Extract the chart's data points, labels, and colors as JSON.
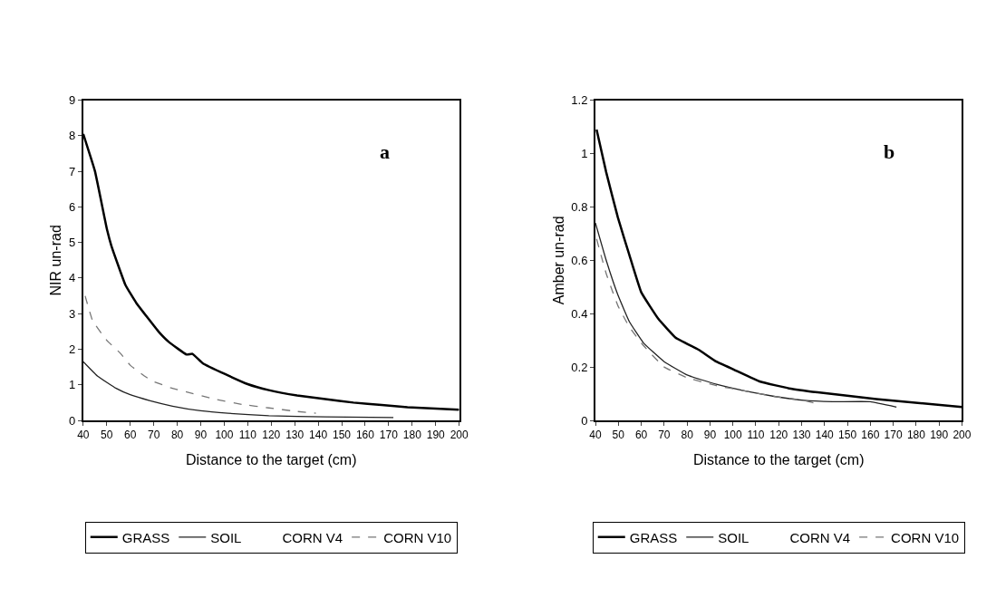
{
  "chart_data": [
    {
      "type": "line",
      "xlabel": "Distance to the target (cm)",
      "ylabel": "NIR un-rad",
      "annotations": [
        "a"
      ],
      "xlim": [
        40,
        200
      ],
      "xticks": [
        40,
        50,
        60,
        70,
        80,
        90,
        100,
        110,
        120,
        130,
        140,
        150,
        160,
        170,
        180,
        190,
        200
      ],
      "ylim": [
        0,
        9
      ],
      "yticks": [
        0,
        1,
        2,
        3,
        4,
        5,
        6,
        7,
        8,
        9
      ],
      "legend": "bottom",
      "marker": "none",
      "series": [
        {
          "name": "GRASS",
          "color": "#000000",
          "line_style": "solid",
          "x": [
            40,
            45,
            50,
            52,
            58,
            62.6,
            72,
            76.5,
            84,
            86.5,
            91,
            100.4,
            110,
            119,
            131,
            143,
            155,
            167,
            178,
            200
          ],
          "values": [
            8.05,
            7.0,
            5.4,
            4.9,
            3.8,
            3.3,
            2.5,
            2.2,
            1.85,
            1.87,
            1.6,
            1.3,
            1.02,
            0.85,
            0.7,
            0.6,
            0.5,
            0.43,
            0.37,
            0.3
          ]
        },
        {
          "name": "SOIL",
          "color": "#222222",
          "line_style": "solid",
          "x": [
            40,
            46,
            54,
            60,
            68.5,
            78,
            90,
            101.6,
            119,
            143,
            172
          ],
          "values": [
            1.65,
            1.25,
            0.9,
            0.72,
            0.55,
            0.4,
            0.27,
            0.2,
            0.13,
            0.1,
            0.08
          ]
        },
        {
          "name": "CORN V4"
        },
        {
          "name": "CORN V10",
          "color": "#777777",
          "line_style": "dashed",
          "x": [
            40.8,
            44,
            50,
            55.6,
            60,
            66,
            69.6,
            78,
            84,
            95.7,
            107.5,
            119,
            131,
            139
          ],
          "values": [
            3.5,
            2.8,
            2.25,
            1.9,
            1.55,
            1.25,
            1.1,
            0.9,
            0.8,
            0.6,
            0.45,
            0.35,
            0.25,
            0.2
          ]
        }
      ]
    },
    {
      "type": "line",
      "xlabel": "Distance to the target (cm)",
      "ylabel": "Amber un-rad",
      "annotations": [
        "b"
      ],
      "xlim": [
        40,
        200
      ],
      "xticks": [
        40,
        50,
        60,
        70,
        80,
        90,
        100,
        110,
        120,
        130,
        140,
        150,
        160,
        170,
        180,
        190,
        200
      ],
      "ylim": [
        0,
        1.2
      ],
      "yticks": [
        0,
        0.2,
        0.4,
        0.6,
        0.8,
        1,
        1.2
      ],
      "legend": "bottom",
      "marker": "none",
      "series": [
        {
          "name": "GRASS",
          "color": "#000000",
          "line_style": "solid",
          "x": [
            40.5,
            44.7,
            49.8,
            54.8,
            60,
            67.5,
            75,
            85,
            92.8,
            100.5,
            112,
            124.5,
            137,
            162.6,
            200
          ],
          "values": [
            1.09,
            0.93,
            0.76,
            0.62,
            0.48,
            0.38,
            0.31,
            0.265,
            0.22,
            0.19,
            0.145,
            0.12,
            0.105,
            0.08,
            0.05
          ]
        },
        {
          "name": "SOIL",
          "color": "#222222",
          "line_style": "solid",
          "x": [
            40,
            44.7,
            49.8,
            54.8,
            61,
            70,
            80,
            92.8,
            105.5,
            118,
            131,
            143.5,
            160,
            171.4
          ],
          "values": [
            0.74,
            0.6,
            0.47,
            0.37,
            0.29,
            0.22,
            0.17,
            0.135,
            0.11,
            0.09,
            0.075,
            0.07,
            0.07,
            0.05
          ]
        },
        {
          "name": "CORN V4"
        },
        {
          "name": "CORN V10",
          "color": "#777777",
          "line_style": "dashed",
          "x": [
            40.5,
            44.7,
            49.8,
            54.8,
            61,
            70,
            80,
            92.8,
            105.5,
            118,
            131,
            137.5
          ],
          "values": [
            0.68,
            0.55,
            0.43,
            0.35,
            0.28,
            0.2,
            0.16,
            0.13,
            0.11,
            0.09,
            0.075,
            0.06
          ]
        }
      ]
    }
  ]
}
